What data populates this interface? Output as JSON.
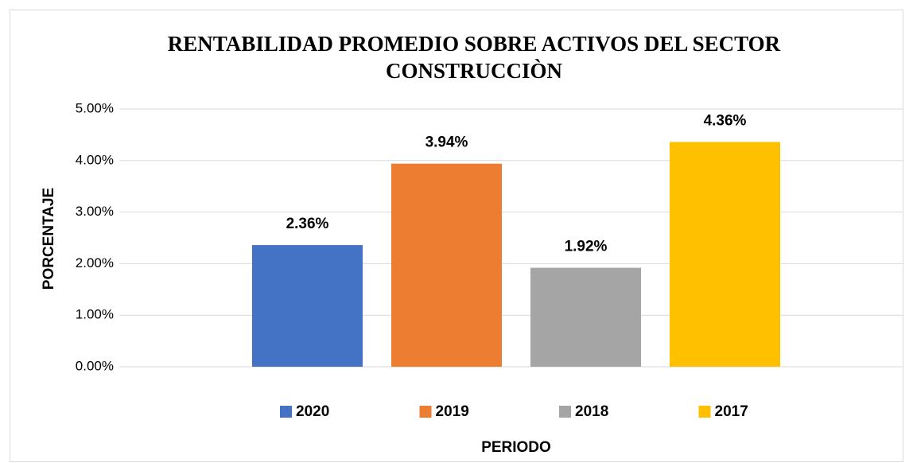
{
  "chart_data": {
    "type": "bar",
    "title": [
      "RENTABILIDAD PROMEDIO SOBRE ACTIVOS DEL SECTOR",
      "CONSTRUCCIÒN"
    ],
    "x_label": "PERIODO",
    "y_label": "PORCENTAJE",
    "categories": [
      null
    ],
    "series": [
      {
        "name": "2020",
        "color": "#4472c4",
        "values": [
          2.36
        ],
        "value_labels": [
          "2.36%"
        ]
      },
      {
        "name": "2019",
        "color": "#ed7d31",
        "values": [
          3.94
        ],
        "value_labels": [
          "3.94%"
        ]
      },
      {
        "name": "2018",
        "color": "#a5a5a5",
        "values": [
          1.92
        ],
        "value_labels": [
          "1.92%"
        ]
      },
      {
        "name": "2017",
        "color": "#ffc000",
        "values": [
          4.36
        ],
        "value_labels": [
          "4.36%"
        ]
      }
    ],
    "ylim": [
      0,
      5
    ],
    "yticks": [
      {
        "value": 0,
        "label": "0.00%"
      },
      {
        "value": 1,
        "label": "1.00%"
      },
      {
        "value": 2,
        "label": "2.00%"
      },
      {
        "value": 3,
        "label": "3.00%"
      },
      {
        "value": 4,
        "label": "4.00%"
      },
      {
        "value": 5,
        "label": "5.00%"
      }
    ],
    "grid": true,
    "legend": "bottom"
  }
}
